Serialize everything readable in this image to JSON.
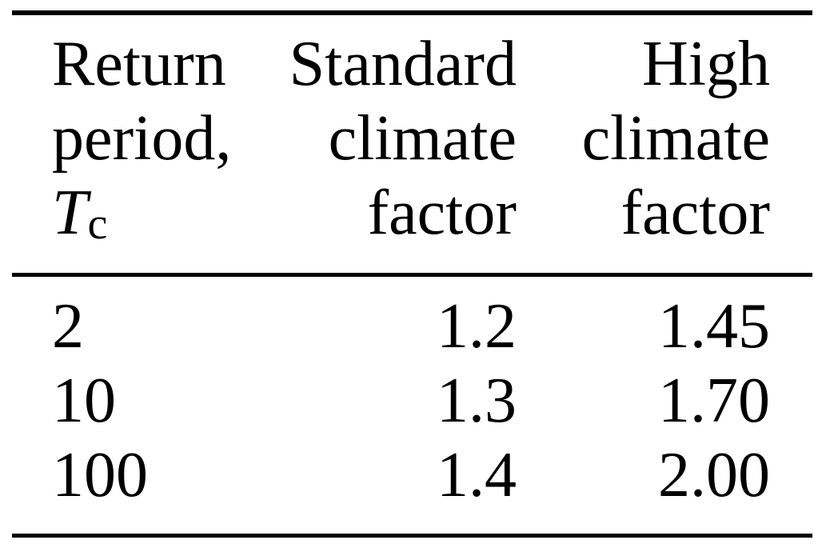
{
  "table": {
    "columns": [
      {
        "name": "return-period",
        "header_lines": [
          "Return",
          "period,"
        ],
        "symbol": "T",
        "symbol_subscript": "c",
        "align": "left"
      },
      {
        "name": "standard-climate-factor",
        "header_lines": [
          "Standard",
          "climate",
          "factor"
        ],
        "align": "right"
      },
      {
        "name": "high-climate-factor",
        "header_lines": [
          "High",
          "climate",
          "factor"
        ],
        "align": "right"
      }
    ],
    "rows": [
      {
        "return_period": "2",
        "standard_factor": "1.2",
        "high_factor": "1.45"
      },
      {
        "return_period": "10",
        "standard_factor": "1.3",
        "high_factor": "1.70"
      },
      {
        "return_period": "100",
        "standard_factor": "1.4",
        "high_factor": "2.00"
      }
    ]
  },
  "colors": {
    "background": "#ffffff",
    "text": "#000000",
    "rule": "#000000"
  },
  "chart_data": {
    "type": "table",
    "columns": [
      "Return period, Tc",
      "Standard climate factor",
      "High climate factor"
    ],
    "rows": [
      [
        2,
        1.2,
        1.45
      ],
      [
        10,
        1.3,
        1.7
      ],
      [
        100,
        1.4,
        2.0
      ]
    ]
  }
}
